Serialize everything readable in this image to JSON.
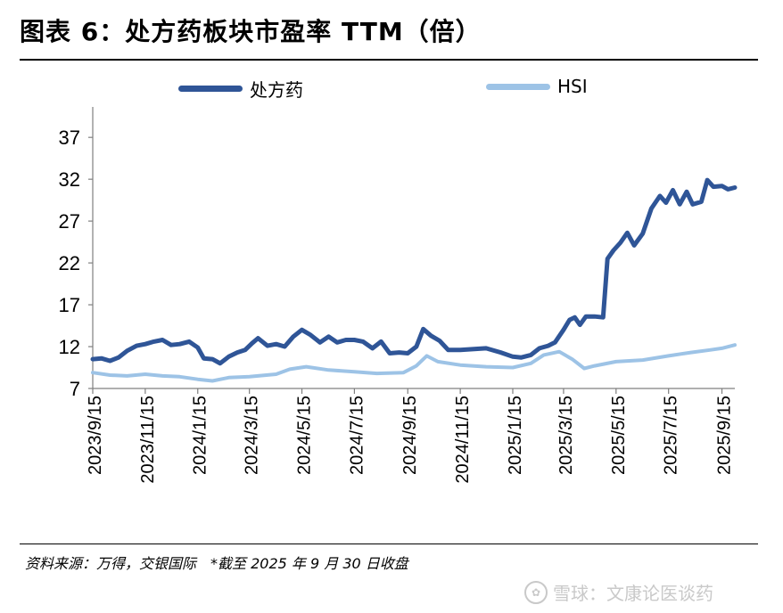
{
  "header": {
    "title": "图表 6：处方药板块市盈率 TTM（倍）"
  },
  "footer": {
    "source": "资料来源：万得，交银国际　*截至 2025 年 9 月 30 日收盘",
    "watermark": "雪球：文康论医谈药"
  },
  "chart_data": {
    "type": "line",
    "title": "",
    "xlabel": "",
    "ylabel": "",
    "ylim": [
      7,
      40
    ],
    "yticks": [
      7,
      12,
      17,
      22,
      27,
      32,
      37
    ],
    "x_tick_labels": [
      "2023/9/15",
      "2023/11/15",
      "2024/1/15",
      "2024/3/15",
      "2024/5/15",
      "2024/7/15",
      "2024/9/15",
      "2024/11/15",
      "2025/1/15",
      "2025/3/15",
      "2025/5/15",
      "2025/7/15",
      "2025/9/15"
    ],
    "x_start": "2023/9/15",
    "x_end": "2025/9/30",
    "legend_position": "top",
    "grid": false,
    "series": [
      {
        "name": "处方药",
        "color": "#2f5597",
        "points": [
          [
            "2023-09-15",
            10.5
          ],
          [
            "2023-09-25",
            10.6
          ],
          [
            "2023-10-05",
            10.3
          ],
          [
            "2023-10-15",
            10.7
          ],
          [
            "2023-10-25",
            11.5
          ],
          [
            "2023-11-05",
            12.1
          ],
          [
            "2023-11-15",
            12.3
          ],
          [
            "2023-11-25",
            12.6
          ],
          [
            "2023-12-05",
            12.8
          ],
          [
            "2023-12-15",
            12.2
          ],
          [
            "2023-12-25",
            12.3
          ],
          [
            "2024-01-05",
            12.6
          ],
          [
            "2024-01-15",
            11.9
          ],
          [
            "2024-01-22",
            10.6
          ],
          [
            "2024-02-01",
            10.5
          ],
          [
            "2024-02-10",
            10.0
          ],
          [
            "2024-02-20",
            10.8
          ],
          [
            "2024-03-01",
            11.3
          ],
          [
            "2024-03-10",
            11.6
          ],
          [
            "2024-03-18",
            12.4
          ],
          [
            "2024-03-25",
            13.0
          ],
          [
            "2024-04-05",
            12.1
          ],
          [
            "2024-04-15",
            12.3
          ],
          [
            "2024-04-25",
            12.0
          ],
          [
            "2024-05-05",
            13.2
          ],
          [
            "2024-05-15",
            14.0
          ],
          [
            "2024-05-25",
            13.4
          ],
          [
            "2024-06-05",
            12.5
          ],
          [
            "2024-06-15",
            13.2
          ],
          [
            "2024-06-25",
            12.5
          ],
          [
            "2024-07-05",
            12.8
          ],
          [
            "2024-07-15",
            12.8
          ],
          [
            "2024-07-25",
            12.6
          ],
          [
            "2024-08-05",
            11.8
          ],
          [
            "2024-08-15",
            12.6
          ],
          [
            "2024-08-25",
            11.2
          ],
          [
            "2024-09-05",
            11.3
          ],
          [
            "2024-09-15",
            11.2
          ],
          [
            "2024-09-25",
            12.0
          ],
          [
            "2024-10-03",
            14.1
          ],
          [
            "2024-10-12",
            13.3
          ],
          [
            "2024-10-22",
            12.7
          ],
          [
            "2024-11-01",
            11.6
          ],
          [
            "2024-11-15",
            11.6
          ],
          [
            "2024-12-01",
            11.7
          ],
          [
            "2024-12-15",
            11.8
          ],
          [
            "2025-01-01",
            11.3
          ],
          [
            "2025-01-15",
            10.8
          ],
          [
            "2025-01-25",
            10.7
          ],
          [
            "2025-02-05",
            11.0
          ],
          [
            "2025-02-15",
            11.8
          ],
          [
            "2025-02-25",
            12.1
          ],
          [
            "2025-03-05",
            12.5
          ],
          [
            "2025-03-15",
            14.0
          ],
          [
            "2025-03-22",
            15.2
          ],
          [
            "2025-03-28",
            15.5
          ],
          [
            "2025-04-03",
            14.6
          ],
          [
            "2025-04-10",
            15.6
          ],
          [
            "2025-04-20",
            15.6
          ],
          [
            "2025-04-30",
            15.5
          ],
          [
            "2025-05-05",
            22.5
          ],
          [
            "2025-05-12",
            23.5
          ],
          [
            "2025-05-20",
            24.4
          ],
          [
            "2025-05-28",
            25.6
          ],
          [
            "2025-06-05",
            24.1
          ],
          [
            "2025-06-15",
            25.5
          ],
          [
            "2025-06-25",
            28.5
          ],
          [
            "2025-07-05",
            30.0
          ],
          [
            "2025-07-12",
            29.2
          ],
          [
            "2025-07-20",
            30.7
          ],
          [
            "2025-07-28",
            29.0
          ],
          [
            "2025-08-05",
            30.5
          ],
          [
            "2025-08-12",
            29.0
          ],
          [
            "2025-08-22",
            29.3
          ],
          [
            "2025-08-29",
            31.9
          ],
          [
            "2025-09-05",
            31.1
          ],
          [
            "2025-09-15",
            31.2
          ],
          [
            "2025-09-22",
            30.8
          ],
          [
            "2025-09-30",
            31.0
          ]
        ]
      },
      {
        "name": "HSI",
        "color": "#9dc3e6",
        "points": [
          [
            "2023-09-15",
            8.9
          ],
          [
            "2023-10-05",
            8.6
          ],
          [
            "2023-10-25",
            8.5
          ],
          [
            "2023-11-15",
            8.7
          ],
          [
            "2023-12-05",
            8.5
          ],
          [
            "2023-12-25",
            8.4
          ],
          [
            "2024-01-15",
            8.1
          ],
          [
            "2024-02-01",
            7.9
          ],
          [
            "2024-02-20",
            8.3
          ],
          [
            "2024-03-15",
            8.4
          ],
          [
            "2024-04-15",
            8.7
          ],
          [
            "2024-05-01",
            9.3
          ],
          [
            "2024-05-20",
            9.6
          ],
          [
            "2024-06-15",
            9.2
          ],
          [
            "2024-07-15",
            9.0
          ],
          [
            "2024-08-10",
            8.8
          ],
          [
            "2024-09-10",
            8.9
          ],
          [
            "2024-09-25",
            9.7
          ],
          [
            "2024-10-07",
            10.9
          ],
          [
            "2024-10-20",
            10.2
          ],
          [
            "2024-11-15",
            9.8
          ],
          [
            "2024-12-15",
            9.6
          ],
          [
            "2025-01-15",
            9.5
          ],
          [
            "2025-02-05",
            10.0
          ],
          [
            "2025-02-20",
            11.0
          ],
          [
            "2025-03-10",
            11.4
          ],
          [
            "2025-03-25",
            10.5
          ],
          [
            "2025-04-08",
            9.4
          ],
          [
            "2025-04-20",
            9.7
          ],
          [
            "2025-05-15",
            10.2
          ],
          [
            "2025-06-15",
            10.4
          ],
          [
            "2025-07-15",
            10.9
          ],
          [
            "2025-08-10",
            11.3
          ],
          [
            "2025-09-01",
            11.6
          ],
          [
            "2025-09-15",
            11.8
          ],
          [
            "2025-09-30",
            12.2
          ]
        ]
      }
    ]
  }
}
